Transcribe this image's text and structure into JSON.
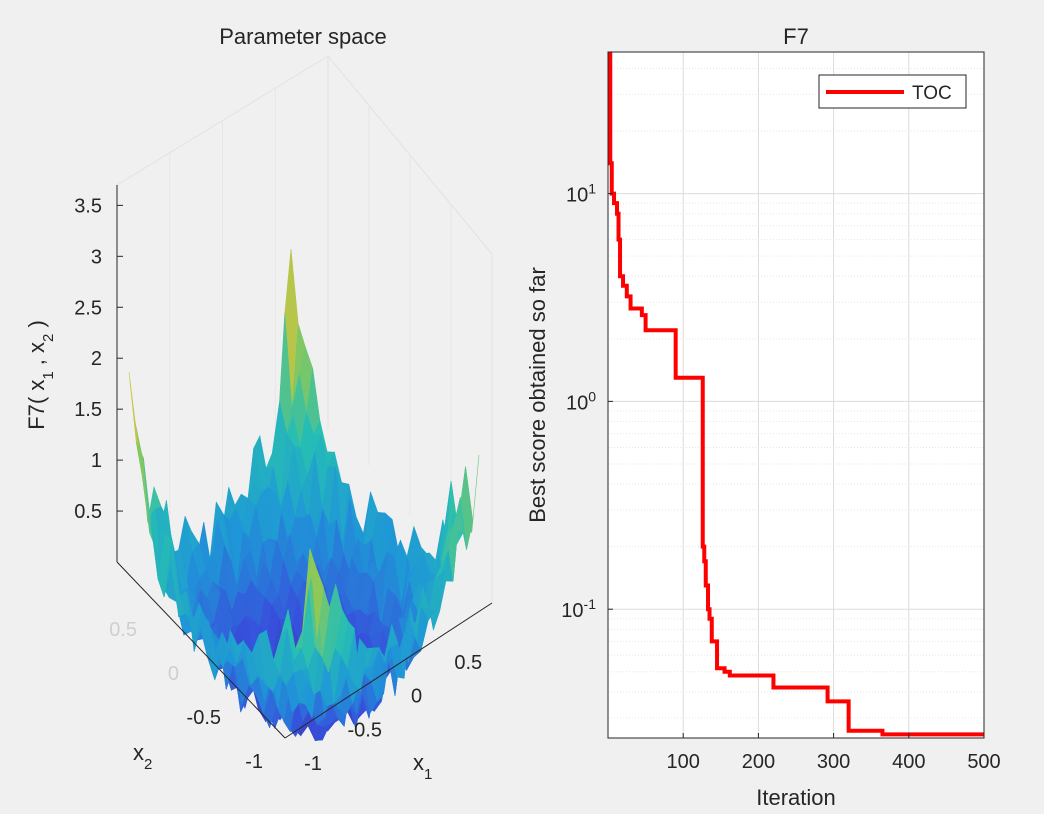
{
  "colors": {
    "background": "#f0f0f0",
    "toc_line": "#ff0000",
    "grid": "#d8d8d8",
    "axis": "#262626",
    "surface_low": "#3b2fb8",
    "surface_mid": "#1fa3d6",
    "surface_high": "#f2c232"
  },
  "chart_data": [
    {
      "type": "surface3d",
      "title": "Parameter space",
      "zlabel": "F7( x1 , x2 )",
      "zlabel_parts": {
        "prefix": "F7( x",
        "sub1": "1",
        "sep": " , x",
        "sub2": "2",
        "suffix": " )"
      },
      "xlabel": {
        "base": "x",
        "sub": "1"
      },
      "ylabel": {
        "base": "x",
        "sub": "2"
      },
      "zticks": [
        0.5,
        1,
        1.5,
        2,
        2.5,
        3,
        3.5
      ],
      "zticklabels": [
        "0.5",
        "1",
        "1.5",
        "2",
        "2.5",
        "3",
        "3.5"
      ],
      "xticks": [
        -1,
        -0.5,
        0,
        0.5
      ],
      "xticklabels": [
        "-1",
        "-0.5",
        "0",
        "0.5"
      ],
      "yticks": [
        -1,
        -0.5,
        0,
        0.5
      ],
      "yticklabels": [
        "-1",
        "-0.5",
        "0",
        "0.5"
      ],
      "xlim": [
        -1,
        1
      ],
      "ylim": [
        -1,
        1
      ],
      "zlim": [
        0,
        3.7
      ]
    },
    {
      "type": "line",
      "title": "F7",
      "xlabel": "Iteration",
      "ylabel": "Best score obtained so far",
      "yscale": "log",
      "xlim": [
        0,
        500
      ],
      "ylim": [
        0.024,
        48
      ],
      "xticks": [
        100,
        200,
        300,
        400,
        500
      ],
      "xticklabels": [
        "100",
        "200",
        "300",
        "400",
        "500"
      ],
      "yticks": [
        0.1,
        1,
        10
      ],
      "yticklabels": [
        {
          "base": "10",
          "exp": "-1"
        },
        {
          "base": "10",
          "exp": "0"
        },
        {
          "base": "10",
          "exp": "1"
        }
      ],
      "grid": true,
      "legend": {
        "location": "top-right",
        "entries": [
          "TOC"
        ]
      },
      "series": [
        {
          "name": "TOC",
          "x": [
            1,
            3,
            5,
            8,
            12,
            14,
            16,
            20,
            25,
            30,
            34,
            45,
            50,
            88,
            90,
            125,
            126,
            128,
            130,
            133,
            135,
            138,
            142,
            145,
            155,
            162,
            200,
            220,
            260,
            290,
            292,
            310,
            320,
            330,
            365,
            500
          ],
          "y": [
            48,
            14,
            10,
            9,
            8,
            6,
            4,
            3.6,
            3.2,
            2.8,
            2.8,
            2.6,
            2.2,
            2.2,
            1.3,
            1.3,
            0.2,
            0.17,
            0.13,
            0.1,
            0.09,
            0.07,
            0.07,
            0.052,
            0.05,
            0.048,
            0.048,
            0.042,
            0.042,
            0.042,
            0.036,
            0.036,
            0.026,
            0.026,
            0.025,
            0.025
          ]
        }
      ]
    }
  ]
}
